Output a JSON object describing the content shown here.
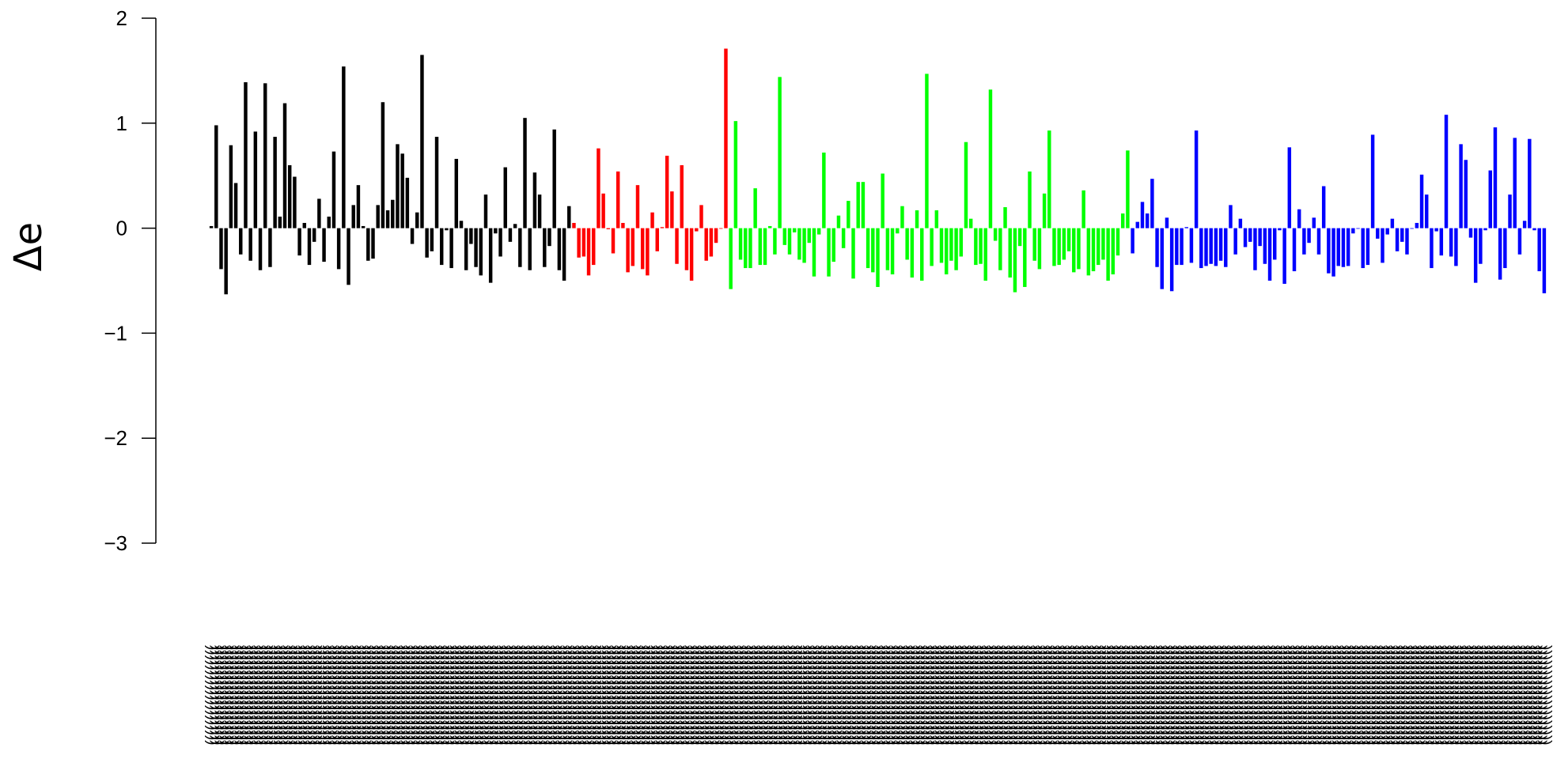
{
  "chart_data": {
    "type": "bar",
    "ylabel": "Δe",
    "ylim": [
      -3,
      2
    ],
    "yticks": [
      2,
      1,
      0,
      -1,
      -2,
      -3
    ],
    "ytick_labels": [
      "2",
      "1",
      "0",
      "−1",
      "−2",
      "−3"
    ],
    "grid": false,
    "legend": "none",
    "series": [
      {
        "color": "#000000",
        "values": [
          0.02,
          0.98,
          -0.39,
          -0.63,
          0.79,
          0.43,
          -0.25,
          1.39,
          -0.31,
          0.92,
          -0.4,
          1.38,
          -0.37,
          0.87,
          0.11,
          1.19,
          0.6,
          0.49,
          -0.26,
          0.05,
          -0.35,
          -0.13,
          0.28,
          -0.32,
          0.11,
          0.73,
          -0.39,
          1.54,
          -0.54,
          0.22,
          0.41,
          0.02,
          -0.31,
          -0.29,
          0.22,
          1.2,
          0.17,
          0.27,
          0.8,
          0.71,
          0.48,
          -0.15,
          0.15,
          1.65,
          -0.28,
          -0.22,
          0.87,
          -0.35,
          -0.02,
          -0.38,
          0.66,
          0.07,
          -0.4,
          -0.15,
          -0.37,
          -0.45,
          0.32,
          -0.52,
          -0.05,
          -0.27,
          0.58,
          -0.13,
          0.04,
          -0.37,
          1.05,
          -0.4,
          0.53,
          0.32,
          -0.37,
          -0.17,
          0.94,
          -0.4,
          -0.5,
          0.21
        ]
      },
      {
        "color": "#ff0000",
        "values": [
          0.05,
          -0.28,
          -0.27,
          -0.45,
          -0.35,
          0.76,
          0.33,
          -0.01,
          -0.24,
          0.54,
          0.05,
          -0.42,
          -0.36,
          0.41,
          -0.39,
          -0.45,
          0.15,
          -0.22,
          0.01,
          0.69,
          0.35,
          -0.34,
          0.6,
          -0.4,
          -0.5,
          -0.03,
          0.22,
          -0.31,
          -0.27,
          -0.14,
          0.0,
          1.71
        ]
      },
      {
        "color": "#00ff00",
        "values": [
          -0.58,
          1.02,
          -0.3,
          -0.38,
          -0.38,
          0.38,
          -0.35,
          -0.35,
          0.02,
          -0.25,
          1.44,
          -0.16,
          -0.25,
          -0.04,
          -0.3,
          -0.33,
          -0.14,
          -0.46,
          -0.06,
          0.72,
          -0.46,
          -0.32,
          0.12,
          -0.19,
          0.26,
          -0.48,
          0.44,
          0.44,
          -0.38,
          -0.42,
          -0.56,
          0.52,
          -0.4,
          -0.44,
          -0.05,
          0.21,
          -0.3,
          -0.47,
          0.17,
          -0.5,
          1.47,
          -0.36,
          0.17,
          -0.33,
          -0.44,
          -0.31,
          -0.4,
          -0.27,
          0.82,
          0.09,
          -0.35,
          -0.34,
          -0.5,
          1.32,
          -0.12,
          -0.4,
          0.2,
          -0.47,
          -0.61,
          -0.17,
          -0.56,
          0.54,
          -0.31,
          -0.39,
          0.33,
          0.93,
          -0.36,
          -0.35,
          -0.3,
          -0.22,
          -0.42,
          -0.39,
          0.36,
          -0.45,
          -0.41,
          -0.35,
          -0.3,
          -0.5,
          -0.44,
          -0.26,
          0.14,
          0.74
        ]
      },
      {
        "color": "#0000ff",
        "values": [
          -0.24,
          0.06,
          0.25,
          0.14,
          0.47,
          -0.37,
          -0.58,
          0.1,
          -0.6,
          -0.35,
          -0.35,
          0.01,
          -0.33,
          0.93,
          -0.38,
          -0.36,
          -0.34,
          -0.36,
          -0.31,
          -0.37,
          0.22,
          -0.25,
          0.09,
          -0.18,
          -0.13,
          -0.4,
          -0.17,
          -0.34,
          -0.5,
          -0.3,
          -0.02,
          -0.53,
          0.77,
          -0.41,
          0.18,
          -0.25,
          -0.14,
          0.1,
          -0.25,
          0.4,
          -0.43,
          -0.46,
          -0.36,
          -0.37,
          -0.36,
          -0.05,
          0.0,
          -0.38,
          -0.35,
          0.89,
          -0.1,
          -0.33,
          -0.06,
          0.09,
          -0.22,
          -0.13,
          -0.25,
          0.0,
          0.05,
          0.51,
          0.32,
          -0.38,
          -0.03,
          -0.26,
          1.08,
          -0.27,
          -0.36,
          0.8,
          0.65,
          -0.09,
          -0.52,
          -0.34,
          -0.02,
          0.55,
          0.96,
          -0.49,
          -0.38,
          0.32,
          0.86,
          -0.25,
          0.07,
          0.85,
          -0.02,
          -0.41,
          -0.62
        ]
      }
    ]
  }
}
